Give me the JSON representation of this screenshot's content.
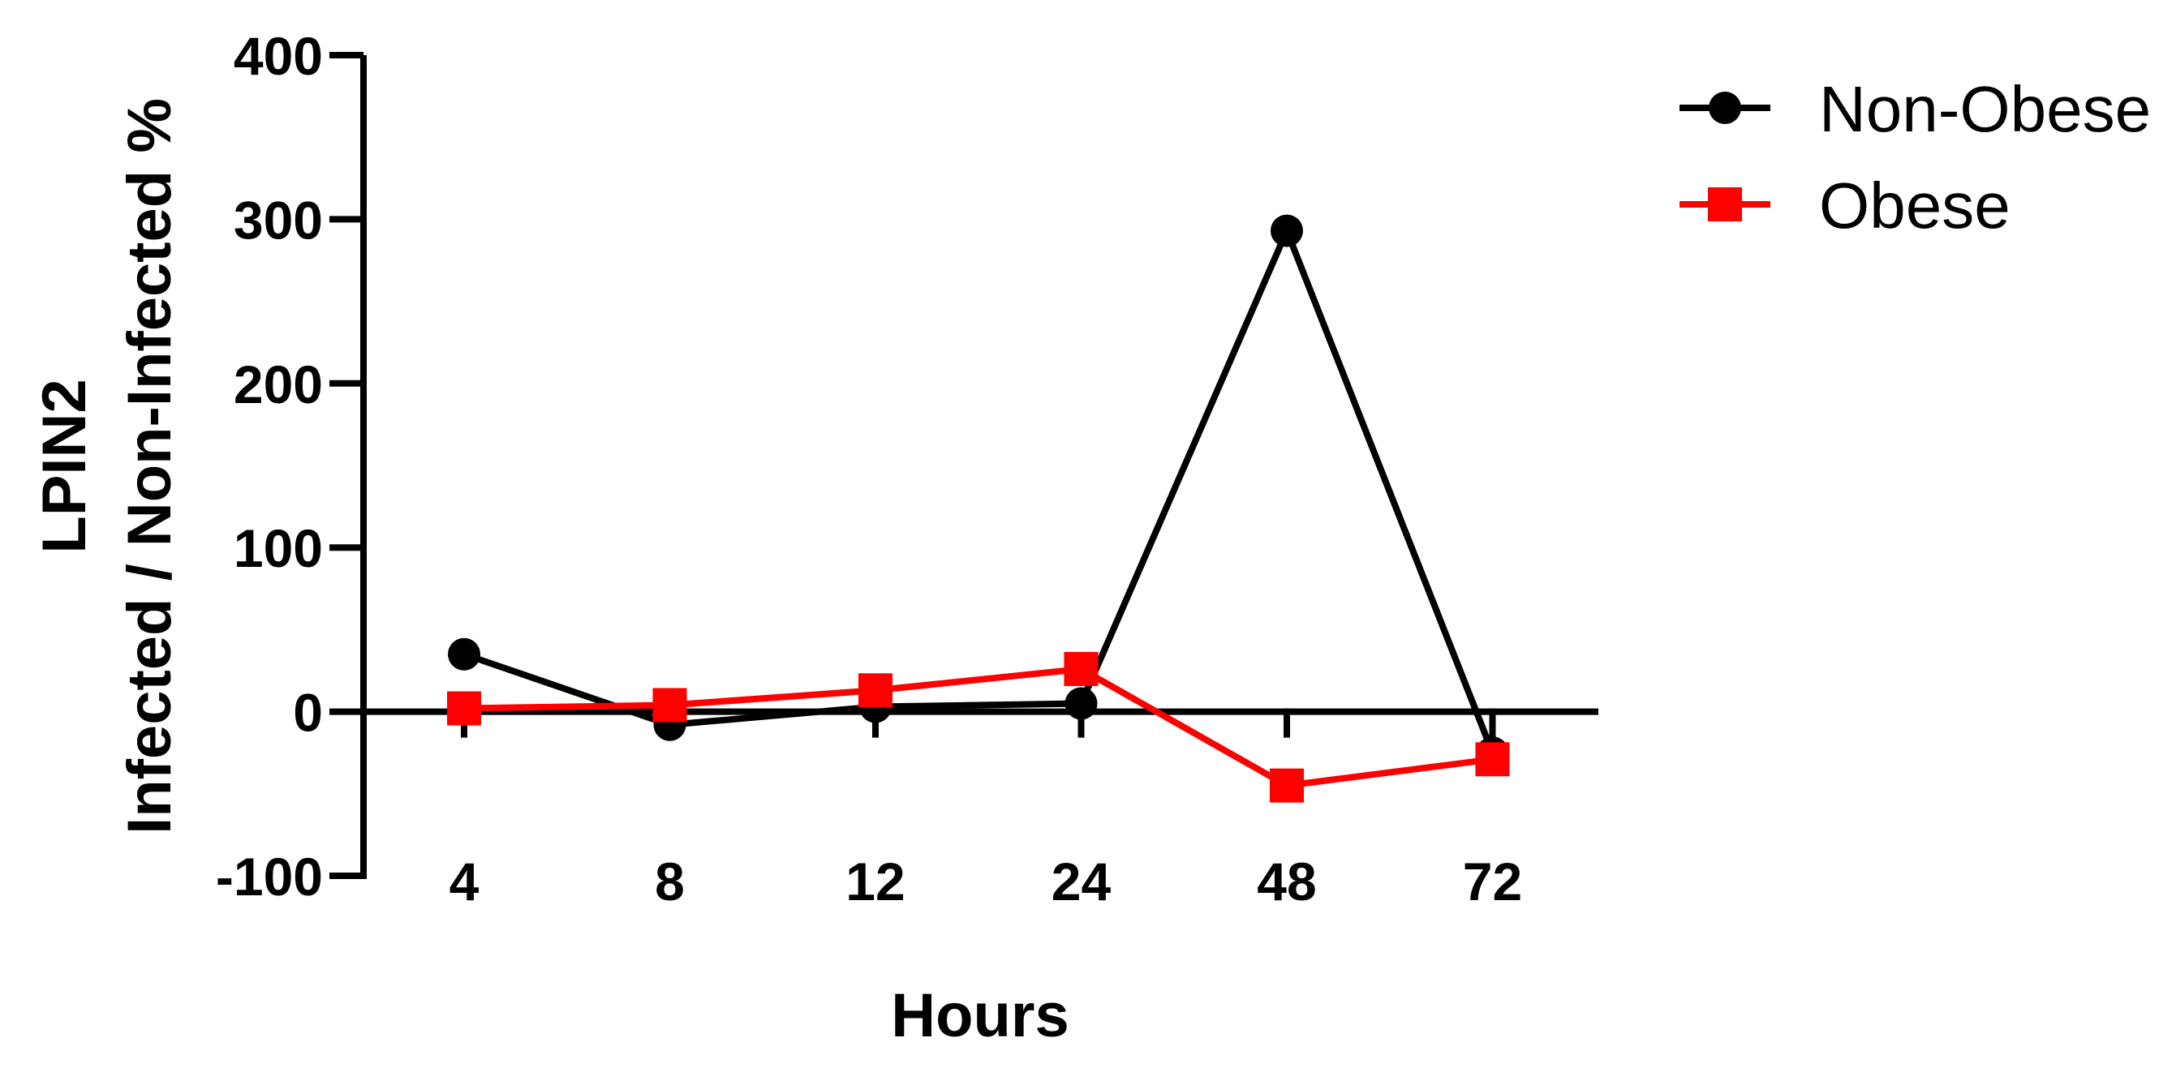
{
  "chart_data": {
    "type": "line",
    "categories": [
      "4",
      "8",
      "12",
      "24",
      "48",
      "72"
    ],
    "xlabel": "Hours",
    "ylabel_lines": [
      "LPIN2",
      "Infected / Non-Infected %"
    ],
    "ylim": [
      -100,
      400
    ],
    "yticks": [
      "-100",
      "0",
      "100",
      "200",
      "300",
      "400"
    ],
    "grid": false,
    "legend_position": "top-right",
    "series": [
      {
        "name": "Non-Obese",
        "color": "#000000",
        "marker": "circle",
        "values": [
          35,
          -8,
          3,
          5,
          293,
          -25
        ]
      },
      {
        "name": "Obese",
        "color": "#ff0000",
        "marker": "square",
        "values": [
          2,
          4,
          13,
          26,
          -45,
          -29
        ]
      }
    ]
  }
}
